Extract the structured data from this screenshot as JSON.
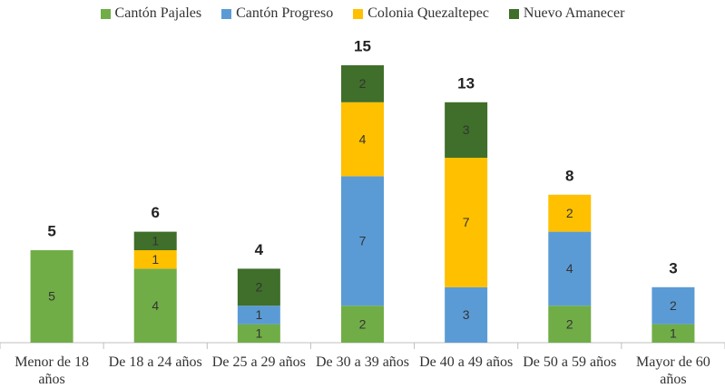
{
  "chart_data": {
    "type": "stacked_bar",
    "categories": [
      "Menor de 18 años",
      "De 18 a 24 años",
      "De 25 a 29 años",
      "De 30 a 39 años",
      "De 40 a 49 años",
      "De 50 a 59 años",
      "Mayor de 60 años"
    ],
    "series": [
      {
        "name": "Cantón Pajales",
        "color": "#70ad47",
        "values": [
          5,
          4,
          1,
          2,
          null,
          2,
          1
        ]
      },
      {
        "name": "Cantón Progreso",
        "color": "#5b9bd5",
        "values": [
          null,
          null,
          1,
          7,
          3,
          4,
          2
        ]
      },
      {
        "name": "Colonia Quezaltepec",
        "color": "#ffc000",
        "values": [
          null,
          1,
          null,
          4,
          7,
          2,
          null
        ]
      },
      {
        "name": "Nuevo Amanecer",
        "color": "#3f6f2a",
        "values": [
          null,
          1,
          2,
          2,
          3,
          null,
          null
        ]
      }
    ],
    "totals": [
      5,
      6,
      4,
      15,
      13,
      8,
      3
    ],
    "ylim": [
      0,
      16
    ],
    "legend": "top"
  }
}
